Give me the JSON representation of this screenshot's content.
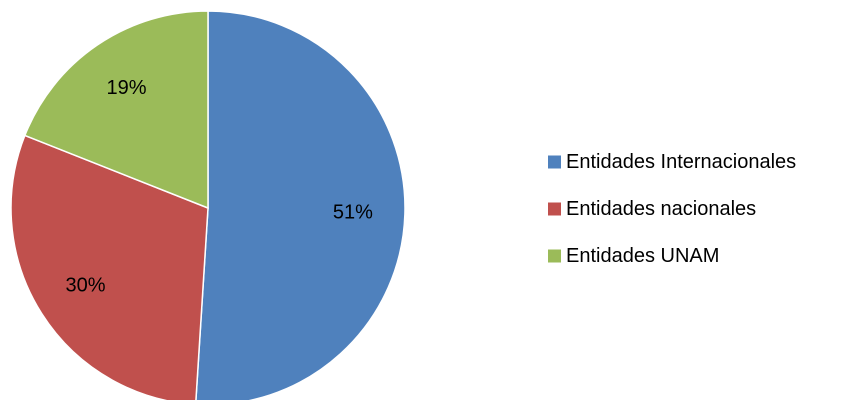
{
  "chart_data": {
    "type": "pie",
    "categories": [
      "Entidades Internacionales",
      "Entidades nacionales",
      "Entidades UNAM"
    ],
    "values": [
      51,
      30,
      19
    ],
    "data_labels": [
      "51%",
      "30%",
      "19%"
    ],
    "colors": [
      "#4F81BD",
      "#C0504D",
      "#9BBB59"
    ],
    "start_angle_deg": 0,
    "direction": "clockwise",
    "legend": "right",
    "title": ""
  }
}
